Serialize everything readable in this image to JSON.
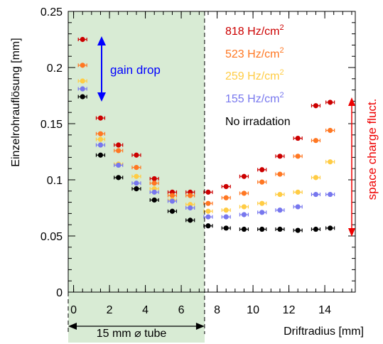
{
  "chart_data": {
    "type": "scatter",
    "xlabel": "Driftradius [mm]",
    "ylabel": "Einzelrohrauflösung [mm]",
    "xlim": [
      -0.3,
      15.7
    ],
    "ylim": [
      0,
      0.25
    ],
    "x_ticks": [
      "0",
      "2",
      "4",
      "6",
      "8",
      "10",
      "12",
      "14"
    ],
    "y_ticks": [
      "0",
      "0.05",
      "0.1",
      "0.15",
      "0.2",
      "0.25"
    ],
    "grid": false,
    "legend_position": "top-right",
    "x": [
      0.5,
      1.5,
      2.5,
      3.5,
      4.5,
      5.5,
      6.5,
      7.5,
      8.5,
      9.5,
      10.5,
      11.5,
      12.5,
      13.5,
      14.3
    ],
    "series": [
      {
        "name": "818 Hz/cm",
        "sup": "2",
        "color": "#cc0000",
        "values": [
          0.225,
          0.155,
          0.131,
          0.122,
          0.101,
          0.089,
          0.089,
          0.089,
          0.094,
          0.103,
          0.109,
          0.121,
          0.137,
          0.166,
          0.169
        ]
      },
      {
        "name": "523 Hz/cm",
        "sup": "2",
        "color": "#ff7722",
        "values": [
          0.202,
          0.141,
          0.126,
          0.111,
          0.097,
          0.086,
          0.086,
          0.079,
          0.084,
          0.088,
          0.098,
          0.105,
          0.121,
          0.135,
          0.144
        ]
      },
      {
        "name": "259 Hz/cm",
        "sup": "2",
        "color": "#ffcc44",
        "values": [
          0.188,
          0.136,
          0.114,
          0.103,
          0.092,
          0.082,
          0.078,
          0.072,
          0.073,
          0.076,
          0.079,
          0.087,
          0.089,
          0.102,
          0.116
        ]
      },
      {
        "name": "155 Hz/cm",
        "sup": "2",
        "color": "#7777ee",
        "values": [
          0.181,
          0.131,
          0.113,
          0.097,
          0.089,
          0.081,
          0.075,
          0.067,
          0.067,
          0.069,
          0.071,
          0.073,
          0.076,
          0.087,
          0.087
        ]
      },
      {
        "name": "No irradation",
        "sup": "",
        "color": "#000000",
        "values": [
          0.174,
          0.122,
          0.102,
          0.092,
          0.082,
          0.072,
          0.064,
          0.059,
          0.057,
          0.056,
          0.056,
          0.056,
          0.055,
          0.056,
          0.057
        ]
      }
    ],
    "shaded_region": {
      "x_from": -0.3,
      "x_to": 7.3,
      "color": "#d8ebd4"
    },
    "annotations": {
      "gain_drop": "gain drop",
      "gain_drop_color": "#0000ff",
      "space_charge": "space charge fluct.",
      "space_charge_color": "#ee0000",
      "tube": "15 mm ⌀ tube"
    }
  }
}
